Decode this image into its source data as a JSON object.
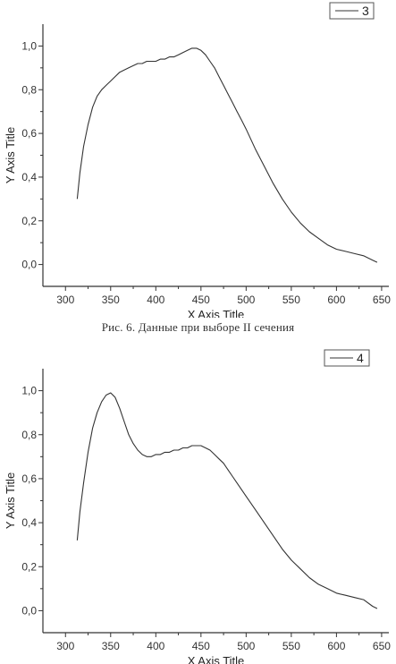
{
  "caption": "Рис. 6. Данные при выборе II сечения",
  "chart_data": [
    {
      "type": "line",
      "xlabel": "X Axis Title",
      "ylabel": "Y Axis Title",
      "xlim": [
        275,
        658
      ],
      "ylim": [
        -0.1,
        1.1
      ],
      "xticks": [
        300,
        350,
        400,
        450,
        500,
        550,
        600,
        650
      ],
      "yticks": [
        0.0,
        0.2,
        0.4,
        0.6,
        0.8,
        1.0
      ],
      "xtick_labels": [
        "300",
        "350",
        "400",
        "450",
        "500",
        "550",
        "600",
        "650"
      ],
      "ytick_labels": [
        "0,0",
        "0,2",
        "0,4",
        "0,6",
        "0,8",
        "1,0"
      ],
      "grid": false,
      "legend": "top-right",
      "series": [
        {
          "name": "3",
          "color": "#333333",
          "x": [
            313,
            316,
            320,
            325,
            330,
            335,
            340,
            345,
            350,
            355,
            360,
            365,
            370,
            375,
            380,
            385,
            390,
            395,
            400,
            405,
            410,
            415,
            420,
            425,
            430,
            435,
            440,
            445,
            450,
            455,
            460,
            465,
            470,
            475,
            480,
            485,
            490,
            495,
            500,
            510,
            520,
            530,
            540,
            550,
            560,
            570,
            580,
            590,
            600,
            610,
            620,
            630,
            640,
            645
          ],
          "y": [
            0.3,
            0.42,
            0.54,
            0.64,
            0.72,
            0.77,
            0.8,
            0.82,
            0.84,
            0.86,
            0.88,
            0.89,
            0.9,
            0.91,
            0.92,
            0.92,
            0.93,
            0.93,
            0.93,
            0.94,
            0.94,
            0.95,
            0.95,
            0.96,
            0.97,
            0.98,
            0.99,
            0.99,
            0.98,
            0.96,
            0.93,
            0.9,
            0.86,
            0.82,
            0.78,
            0.74,
            0.7,
            0.66,
            0.62,
            0.53,
            0.45,
            0.37,
            0.3,
            0.24,
            0.19,
            0.15,
            0.12,
            0.09,
            0.07,
            0.06,
            0.05,
            0.04,
            0.02,
            0.01
          ]
        }
      ]
    },
    {
      "type": "line",
      "xlabel": "X Axis Title",
      "ylabel": "Y Axis Title",
      "xlim": [
        275,
        658
      ],
      "ylim": [
        -0.1,
        1.1
      ],
      "xticks": [
        300,
        350,
        400,
        450,
        500,
        550,
        600,
        650
      ],
      "yticks": [
        0.0,
        0.2,
        0.4,
        0.6,
        0.8,
        1.0
      ],
      "xtick_labels": [
        "300",
        "350",
        "400",
        "450",
        "500",
        "550",
        "600",
        "650"
      ],
      "ytick_labels": [
        "0,0",
        "0,2",
        "0,4",
        "0,6",
        "0,8",
        "1,0"
      ],
      "grid": false,
      "legend": "top-right",
      "series": [
        {
          "name": "4",
          "color": "#333333",
          "x": [
            313,
            316,
            320,
            325,
            330,
            335,
            340,
            345,
            350,
            355,
            360,
            365,
            370,
            375,
            380,
            385,
            390,
            395,
            400,
            405,
            410,
            415,
            420,
            425,
            430,
            435,
            440,
            445,
            450,
            455,
            460,
            465,
            470,
            475,
            480,
            485,
            490,
            500,
            510,
            520,
            530,
            540,
            550,
            560,
            570,
            580,
            590,
            600,
            610,
            620,
            630,
            640,
            645
          ],
          "y": [
            0.32,
            0.45,
            0.58,
            0.72,
            0.83,
            0.9,
            0.95,
            0.98,
            0.99,
            0.97,
            0.92,
            0.86,
            0.8,
            0.76,
            0.73,
            0.71,
            0.7,
            0.7,
            0.71,
            0.71,
            0.72,
            0.72,
            0.73,
            0.73,
            0.74,
            0.74,
            0.75,
            0.75,
            0.75,
            0.74,
            0.73,
            0.71,
            0.69,
            0.67,
            0.64,
            0.61,
            0.58,
            0.52,
            0.46,
            0.4,
            0.34,
            0.28,
            0.23,
            0.19,
            0.15,
            0.12,
            0.1,
            0.08,
            0.07,
            0.06,
            0.05,
            0.02,
            0.01
          ]
        }
      ]
    }
  ]
}
